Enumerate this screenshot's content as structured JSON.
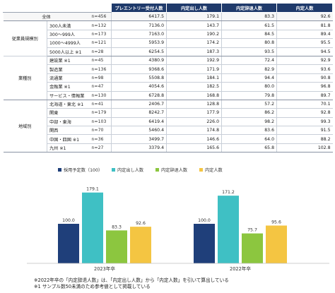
{
  "table": {
    "headers": [
      "プレエントリー受付人数",
      "内定出し人数",
      "内定辞退人数",
      "内定人数"
    ],
    "rows": [
      {
        "group": "",
        "label": "全体",
        "n": "n=456",
        "values": [
          "6417.5",
          "179.1",
          "83.3",
          "92.6"
        ]
      },
      {
        "group": "従業員規模別",
        "label": "300人未満",
        "n": "n=132",
        "values": [
          "7136.0",
          "143.7",
          "61.5",
          "81.8"
        ]
      },
      {
        "group": "",
        "label": "300～999人",
        "n": "n=173",
        "values": [
          "7163.0",
          "190.2",
          "84.5",
          "89.4"
        ]
      },
      {
        "group": "",
        "label": "1000～4999人",
        "n": "n=121",
        "values": [
          "5953.9",
          "174.2",
          "80.8",
          "95.5"
        ]
      },
      {
        "group": "",
        "label": "5000人以上 ※1",
        "n": "n=28",
        "values": [
          "6254.5",
          "187.3",
          "93.5",
          "94.5"
        ]
      },
      {
        "group": "業種別",
        "label": "建設業 ※1",
        "n": "n=45",
        "values": [
          "4380.9",
          "192.9",
          "72.4",
          "92.9"
        ]
      },
      {
        "group": "",
        "label": "製造業",
        "n": "n=136",
        "values": [
          "9368.6",
          "171.9",
          "82.9",
          "93.6"
        ]
      },
      {
        "group": "",
        "label": "流通業",
        "n": "n=98",
        "values": [
          "5508.8",
          "184.1",
          "94.4",
          "90.8"
        ]
      },
      {
        "group": "",
        "label": "金融業 ※1",
        "n": "n=47",
        "values": [
          "4054.6",
          "182.5",
          "80.0",
          "96.8"
        ]
      },
      {
        "group": "",
        "label": "サービス・情報業",
        "n": "n=130",
        "values": [
          "6728.8",
          "168.8",
          "79.8",
          "89.7"
        ]
      },
      {
        "group": "地域別",
        "label": "北海道・東北 ※1",
        "n": "n=41",
        "values": [
          "2406.7",
          "128.8",
          "57.2",
          "70.1"
        ]
      },
      {
        "group": "",
        "label": "関東",
        "n": "n=179",
        "values": [
          "8242.7",
          "177.9",
          "86.2",
          "92.8"
        ]
      },
      {
        "group": "",
        "label": "中部・東海",
        "n": "n=103",
        "values": [
          "6419.4",
          "226.0",
          "98.2",
          "99.3"
        ]
      },
      {
        "group": "",
        "label": "関西",
        "n": "n=70",
        "values": [
          "5460.4",
          "174.8",
          "83.6",
          "91.5"
        ]
      },
      {
        "group": "",
        "label": "中国・四国 ※1",
        "n": "n=36",
        "values": [
          "3499.7",
          "146.6",
          "64.0",
          "88.2"
        ]
      },
      {
        "group": "",
        "label": "九州 ※1",
        "n": "n=27",
        "values": [
          "3379.4",
          "165.6",
          "65.8",
          "102.8"
        ]
      }
    ]
  },
  "chart_data": {
    "type": "bar",
    "categories": [
      "2023年卒",
      "2022年卒"
    ],
    "series": [
      {
        "name": "採用予定数（100）",
        "color": "#1f3f7a",
        "values": [
          100.0,
          100.0
        ]
      },
      {
        "name": "内定出し人数",
        "color": "#3fc0c4",
        "values": [
          179.1,
          171.2
        ]
      },
      {
        "name": "内定辞退人数",
        "color": "#8cc63f",
        "values": [
          83.3,
          75.7
        ]
      },
      {
        "name": "内定人数",
        "color": "#f4c542",
        "values": [
          92.6,
          95.6
        ]
      }
    ],
    "value_labels": [
      [
        "100.0",
        "179.1",
        "83.3",
        "92.6"
      ],
      [
        "100.0",
        "171.2",
        "75.7",
        "95.6"
      ]
    ],
    "ylim": [
      0,
      200
    ],
    "legend_position": "top-left",
    "grid": false
  },
  "notes": [
    "※2022年卒の「内定辞退人数」は、「内定出し人数」から「内定人数」を引いて算出している",
    "※1 サンプル数50未満のため参考値として掲載している"
  ]
}
